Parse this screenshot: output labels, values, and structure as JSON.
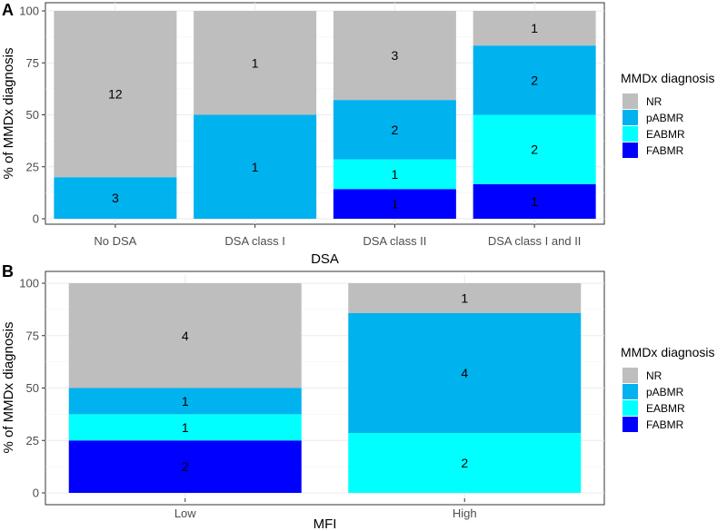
{
  "chart_data": [
    {
      "panel": "A",
      "type": "bar",
      "stacked": true,
      "normalized": true,
      "xlabel": "DSA",
      "ylabel": "% of MMDx diagnosis",
      "ylim": [
        0,
        100
      ],
      "yticks": [
        0,
        25,
        50,
        75,
        100
      ],
      "categories": [
        "No DSA",
        "DSA class I",
        "DSA class II",
        "DSA class I and II"
      ],
      "series": [
        {
          "name": "FABMR",
          "color": "#0000ff",
          "counts": [
            0,
            0,
            1,
            1
          ]
        },
        {
          "name": "EABMR",
          "color": "#00ffff",
          "counts": [
            0,
            0,
            1,
            2
          ]
        },
        {
          "name": "pABMR",
          "color": "#00b2ee",
          "counts": [
            3,
            1,
            2,
            2
          ]
        },
        {
          "name": "NR",
          "color": "#bebebe",
          "counts": [
            12,
            1,
            3,
            1
          ]
        }
      ],
      "legend": {
        "title": "MMDx diagnosis",
        "order": [
          "NR",
          "pABMR",
          "EABMR",
          "FABMR"
        ],
        "position": "right"
      }
    },
    {
      "panel": "B",
      "type": "bar",
      "stacked": true,
      "normalized": true,
      "xlabel": "MFI",
      "ylabel": "% of MMDx diagnosis",
      "ylim": [
        0,
        100
      ],
      "yticks": [
        0,
        25,
        50,
        75,
        100
      ],
      "categories": [
        "Low",
        "High"
      ],
      "series": [
        {
          "name": "FABMR",
          "color": "#0000ff",
          "counts": [
            2,
            0
          ]
        },
        {
          "name": "EABMR",
          "color": "#00ffff",
          "counts": [
            1,
            2
          ]
        },
        {
          "name": "pABMR",
          "color": "#00b2ee",
          "counts": [
            1,
            4
          ]
        },
        {
          "name": "NR",
          "color": "#bebebe",
          "counts": [
            4,
            1
          ]
        }
      ],
      "legend": {
        "title": "MMDx diagnosis",
        "order": [
          "NR",
          "pABMR",
          "EABMR",
          "FABMR"
        ],
        "position": "right"
      }
    }
  ]
}
